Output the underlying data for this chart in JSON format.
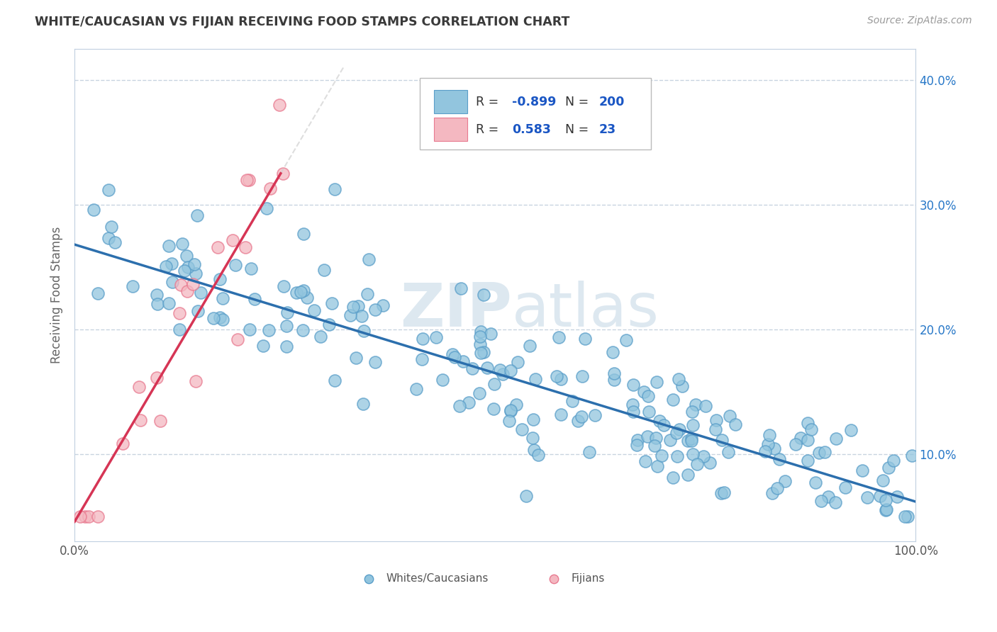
{
  "title": "WHITE/CAUCASIAN VS FIJIAN RECEIVING FOOD STAMPS CORRELATION CHART",
  "source_text": "Source: ZipAtlas.com",
  "ylabel": "Receiving Food Stamps",
  "x_min": 0.0,
  "x_max": 1.0,
  "y_min": 0.03,
  "y_max": 0.425,
  "right_yticklabels": [
    "10.0%",
    "20.0%",
    "30.0%",
    "40.0%"
  ],
  "right_yticks": [
    0.1,
    0.2,
    0.3,
    0.4
  ],
  "blue_R": -0.899,
  "blue_N": 200,
  "pink_R": 0.583,
  "pink_N": 23,
  "blue_color": "#92c5de",
  "pink_color": "#f4b8c1",
  "blue_edge_color": "#5a9ec9",
  "pink_edge_color": "#e87a90",
  "blue_line_color": "#2c6fad",
  "pink_line_color": "#d63555",
  "pink_line_dashed_color": "#d0d0d0",
  "bg_color": "#ffffff",
  "grid_color": "#c8d4e0",
  "title_color": "#3a3a3a",
  "legend_R_color": "#1a56c4",
  "legend_text_color": "#333333",
  "watermark_color": "#dde8f0",
  "blue_line_start_y": 0.268,
  "blue_line_end_y": 0.062,
  "pink_line_start_x": 0.0,
  "pink_line_start_y": 0.046,
  "pink_line_end_x": 0.245,
  "pink_line_end_y": 0.325
}
